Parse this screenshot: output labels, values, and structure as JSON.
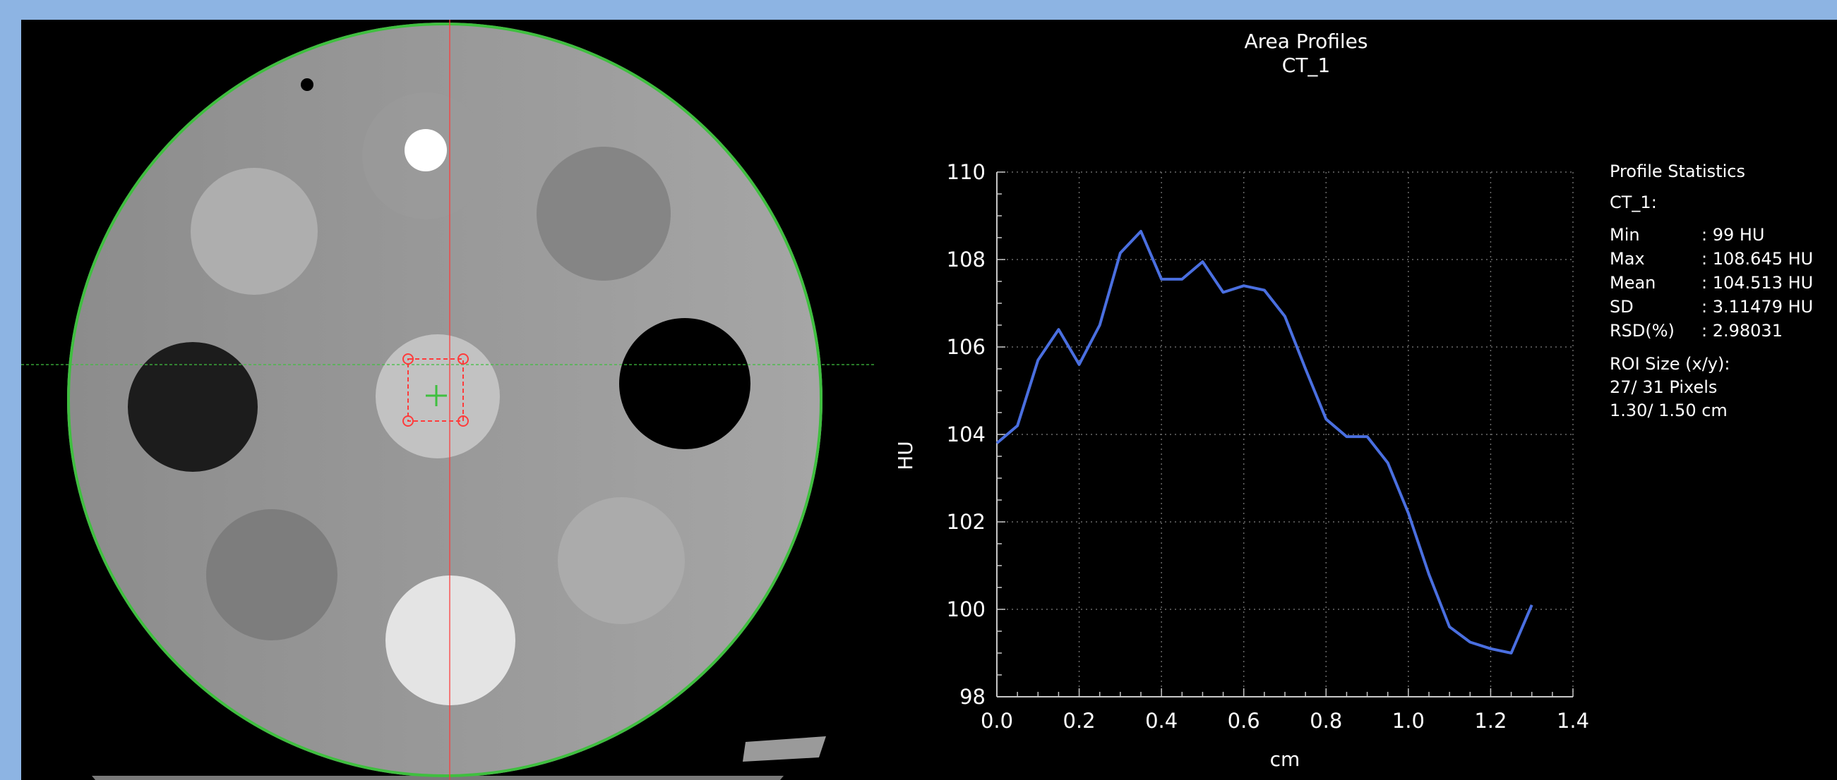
{
  "plot": {
    "title": "Area Profiles",
    "subtitle": "CT_1"
  },
  "stats": {
    "header": "Profile Statistics",
    "series": "CT_1:",
    "rows": [
      {
        "label": "Min",
        "value": ": 99 HU"
      },
      {
        "label": "Max",
        "value": ": 108.645 HU"
      },
      {
        "label": "Mean",
        "value": ": 104.513 HU"
      },
      {
        "label": "SD",
        "value": ": 3.11479 HU"
      },
      {
        "label": "RSD(%)",
        "value": ": 2.98031"
      }
    ],
    "roi_label": "ROI Size (x/y):",
    "roi_pixels": "27/ 31 Pixels",
    "roi_cm": "1.30/ 1.50 cm"
  },
  "colors": {
    "phantom_outline": "#3fbf3f",
    "crosshair": "#ff3b3b",
    "roi": "#ff3b3b",
    "profile_line": "#4a6fe0"
  },
  "chart_data": {
    "type": "line",
    "title": "Area Profiles",
    "subtitle": "CT_1",
    "xlabel": "cm",
    "ylabel": "HU",
    "xlim": [
      0.0,
      1.4
    ],
    "ylim": [
      98,
      110
    ],
    "x_ticks": [
      "0.0",
      "0.2",
      "0.4",
      "0.6",
      "0.8",
      "1.0",
      "1.2",
      "1.4"
    ],
    "y_ticks": [
      "98",
      "100",
      "102",
      "104",
      "106",
      "108",
      "110"
    ],
    "grid": true,
    "series": [
      {
        "x": [
          0.0,
          0.05,
          0.1,
          0.15,
          0.2,
          0.25,
          0.3,
          0.35,
          0.4,
          0.45,
          0.5,
          0.55,
          0.6,
          0.65,
          0.7,
          0.75,
          0.8,
          0.85,
          0.9,
          0.95,
          1.0,
          1.05,
          1.1,
          1.15,
          1.2,
          1.25,
          1.3
        ],
        "y": [
          103.8,
          104.2,
          105.7,
          106.4,
          105.6,
          106.5,
          108.15,
          108.645,
          107.55,
          107.55,
          107.95,
          107.25,
          107.4,
          107.3,
          106.7,
          105.5,
          104.35,
          103.95,
          103.95,
          103.35,
          102.2,
          100.8,
          99.6,
          99.25,
          99.1,
          99.0,
          100.1
        ]
      }
    ]
  }
}
